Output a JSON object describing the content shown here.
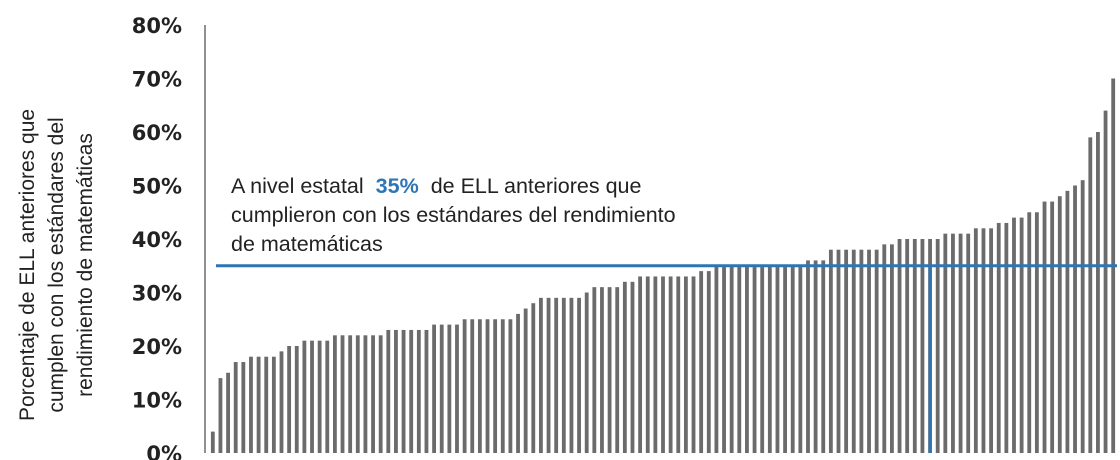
{
  "chart_data": {
    "type": "bar",
    "title": "",
    "xlabel": "",
    "ylabel_lines": [
      "Porcentaje de ELL anteriores que",
      "cumplen con los estándares del",
      "rendimiento de matemáticas"
    ],
    "ylim": [
      0,
      80
    ],
    "y_ticks": [
      0,
      10,
      20,
      30,
      40,
      50,
      60,
      70,
      80
    ],
    "y_tick_labels": [
      "0%",
      "10%",
      "20%",
      "30%",
      "40%",
      "50%",
      "60%",
      "70%",
      "80%"
    ],
    "bar_color": "#6b6b6b",
    "reference_color": "#2e75b6",
    "reference_line": {
      "value": 35,
      "vertical_at_category": 94
    },
    "annotation": {
      "line1_before": "A nivel estatal",
      "line1_highlight": "35%",
      "line1_after": "de ELL anteriores que",
      "line2": "cumplieron con los estándares del rendimiento",
      "line3": "de matemáticas"
    },
    "values": [
      4,
      14,
      15,
      17,
      17,
      18,
      18,
      18,
      18,
      19,
      20,
      20,
      21,
      21,
      21,
      21,
      22,
      22,
      22,
      22,
      22,
      22,
      22,
      23,
      23,
      23,
      23,
      23,
      23,
      24,
      24,
      24,
      24,
      25,
      25,
      25,
      25,
      25,
      25,
      25,
      26,
      27,
      28,
      29,
      29,
      29,
      29,
      29,
      29,
      30,
      31,
      31,
      31,
      31,
      32,
      32,
      33,
      33,
      33,
      33,
      33,
      33,
      33,
      33,
      34,
      34,
      35,
      35,
      35,
      35,
      35,
      35,
      35,
      35,
      35,
      35,
      35,
      35,
      36,
      36,
      36,
      38,
      38,
      38,
      38,
      38,
      38,
      38,
      39,
      39,
      40,
      40,
      40,
      40,
      40,
      40,
      41,
      41,
      41,
      41,
      42,
      42,
      42,
      43,
      43,
      44,
      44,
      45,
      45,
      47,
      47,
      48,
      49,
      50,
      51,
      59,
      60,
      64,
      70
    ]
  }
}
